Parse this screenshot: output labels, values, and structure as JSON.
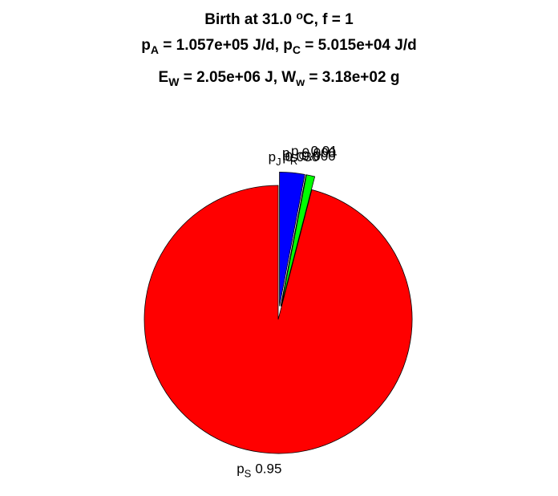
{
  "chart_data": {
    "type": "pie",
    "title": [
      [
        {
          "text": "Birth at 31.0 "
        },
        {
          "sup": "o"
        },
        {
          "text": "C, f = 1"
        }
      ],
      [
        {
          "text": "p"
        },
        {
          "sub": "A"
        },
        {
          "text": " = 1.057e+05 J/d, p"
        },
        {
          "sub": "C"
        },
        {
          "text": " = 5.015e+04 J/d"
        }
      ],
      [
        {
          "text": "E"
        },
        {
          "sub": "W"
        },
        {
          "text": " = 2.05e+06 J, W"
        },
        {
          "sub": "w"
        },
        {
          "text": " = 3.18e+02 g"
        }
      ]
    ],
    "slices": [
      {
        "name": [
          {
            "text": "p"
          },
          {
            "sub": "J"
          }
        ],
        "value": 0.03,
        "value_label": "0.030",
        "color": "#0000ff",
        "explode": true
      },
      {
        "name": [
          {
            "text": "p"
          },
          {
            "sub": "R"
          }
        ],
        "value": 0,
        "value_label": "0.000",
        "color": "#ff00ff",
        "explode": true
      },
      {
        "name": [
          {
            "text": "p"
          },
          {
            "sub": "G"
          }
        ],
        "value": 0,
        "value_label": "0.000",
        "color": "#008000",
        "explode": true
      },
      {
        "name": [
          {
            "text": "p"
          },
          {
            "sub": "G"
          }
        ],
        "value": 0.01,
        "value_label": "0.01",
        "color": "#00ff00",
        "explode": true
      },
      {
        "name": [
          {
            "text": "p"
          },
          {
            "sub": "S"
          }
        ],
        "value": 0.95,
        "value_label": "0.95",
        "color": "#ff0000",
        "explode": false
      }
    ]
  }
}
